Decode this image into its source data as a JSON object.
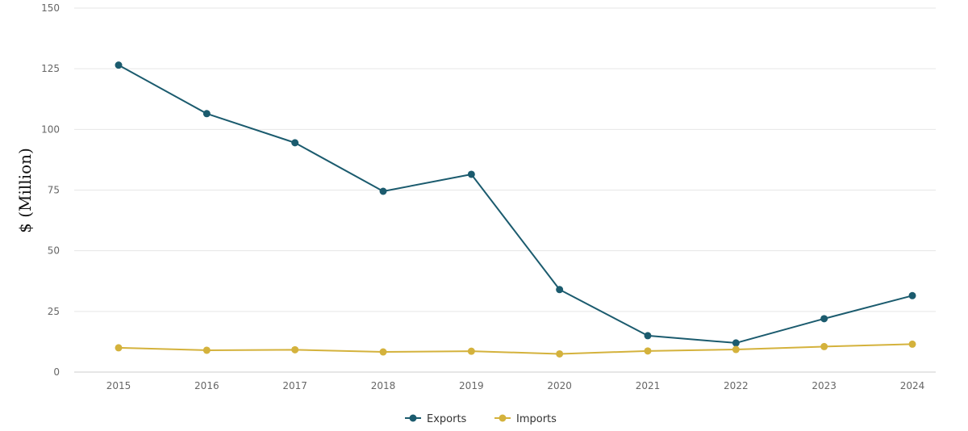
{
  "chart_data": {
    "type": "line",
    "title": "",
    "xlabel": "",
    "ylabel": "$ (Million)",
    "x": [
      "2015",
      "2016",
      "2017",
      "2018",
      "2019",
      "2020",
      "2021",
      "2022",
      "2023",
      "2024"
    ],
    "yticks": [
      0,
      25,
      50,
      75,
      100,
      125,
      150
    ],
    "ylim": [
      0,
      150
    ],
    "grid": true,
    "legend_position": "bottom-center",
    "series": [
      {
        "name": "Exports",
        "color": "#1b5b6e",
        "values": [
          126.5,
          106.5,
          94.5,
          74.5,
          81.5,
          34,
          15,
          12,
          22,
          31.5
        ]
      },
      {
        "name": "Imports",
        "color": "#d4b23c",
        "values": [
          10,
          9,
          9.2,
          8.3,
          8.6,
          7.5,
          8.7,
          9.3,
          10.5,
          11.5
        ]
      }
    ]
  }
}
